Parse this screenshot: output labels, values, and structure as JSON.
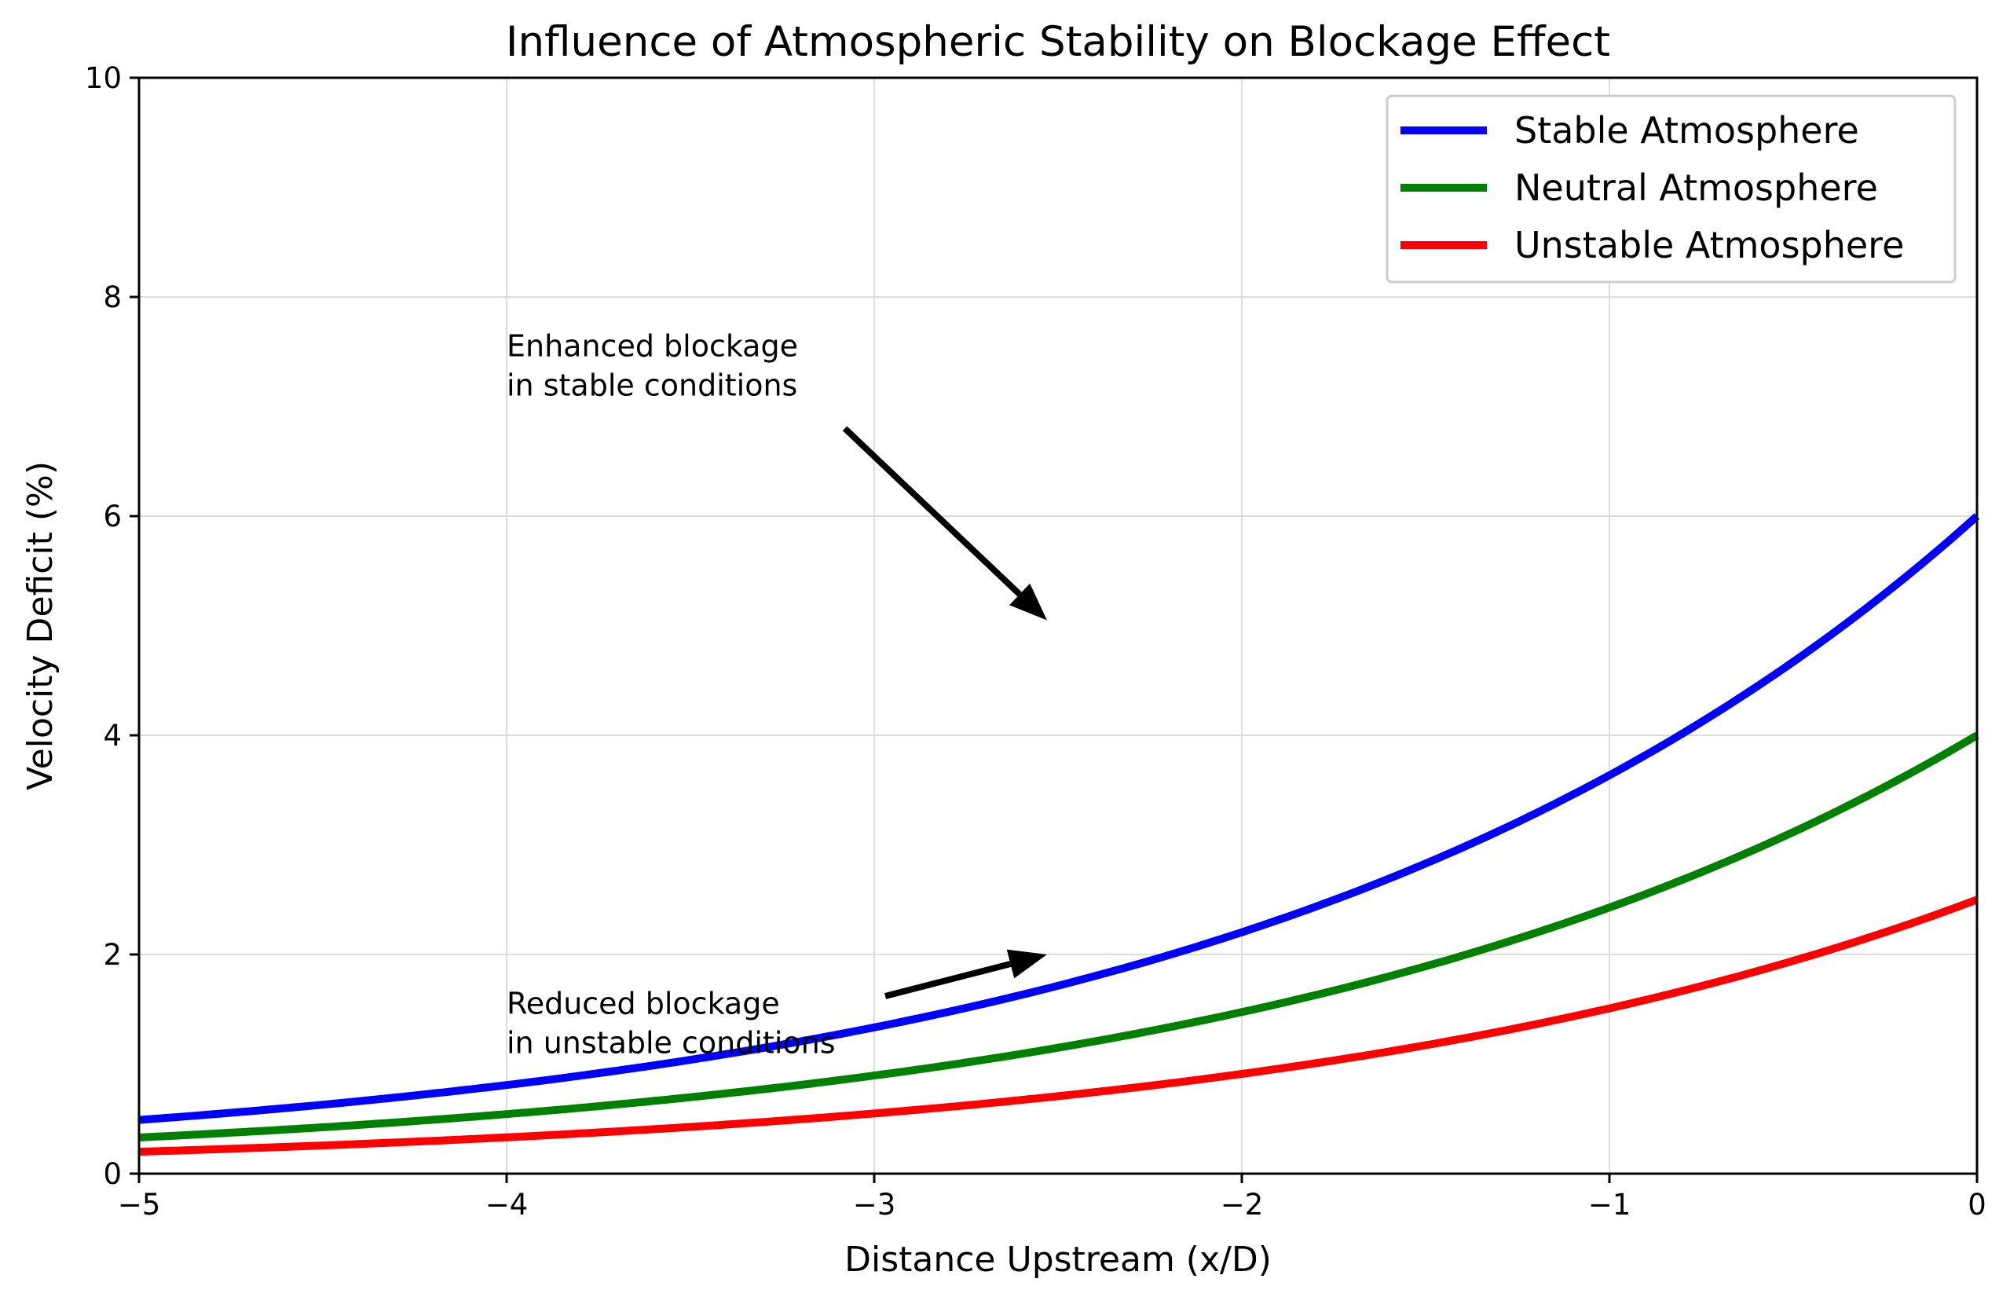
{
  "chart_data": {
    "type": "line",
    "title": "Influence of Atmospheric Stability on Blockage Effect",
    "xlabel": "Distance Upstream (x/D)",
    "ylabel": "Velocity Deficit (%)",
    "xlim": [
      -5,
      0
    ],
    "ylim": [
      0,
      10
    ],
    "x_ticks": [
      -5,
      -4,
      -3,
      -2,
      -1,
      0
    ],
    "x_tick_labels": [
      "−5",
      "−4",
      "−3",
      "−2",
      "−1",
      "0"
    ],
    "y_ticks": [
      0,
      2,
      4,
      6,
      8,
      10
    ],
    "y_tick_labels": [
      "0",
      "2",
      "4",
      "6",
      "8",
      "10"
    ],
    "grid": true,
    "legend_position": "top-right",
    "x": [
      -5.0,
      -4.5,
      -4.0,
      -3.5,
      -3.0,
      -2.5,
      -2.0,
      -1.5,
      -1.0,
      -0.5,
      0.0
    ],
    "series": [
      {
        "name": "Stable Atmosphere",
        "color": "#0000ff",
        "values": [
          0.49,
          0.63,
          0.81,
          1.05,
          1.34,
          1.73,
          2.22,
          2.86,
          3.68,
          4.73,
          6.0
        ]
      },
      {
        "name": "Neutral Atmosphere",
        "color": "#008000",
        "values": [
          0.33,
          0.42,
          0.54,
          0.7,
          0.9,
          1.15,
          1.48,
          1.9,
          2.45,
          3.15,
          4.0
        ]
      },
      {
        "name": "Unstable Atmosphere",
        "color": "#ff0000",
        "values": [
          0.2,
          0.26,
          0.34,
          0.44,
          0.56,
          0.72,
          0.93,
          1.19,
          1.53,
          1.97,
          2.5
        ]
      }
    ],
    "annotations": [
      {
        "lines": [
          "Enhanced blockage",
          "in stable conditions"
        ],
        "text_at": [
          -4.0,
          7.1
        ],
        "arrow_from": [
          -3.08,
          6.8
        ],
        "arrow_to": [
          -2.53,
          5.05
        ]
      },
      {
        "lines": [
          "Reduced blockage",
          "in unstable conditions"
        ],
        "text_at": [
          -4.0,
          1.1
        ],
        "arrow_from": [
          -2.97,
          1.62
        ],
        "arrow_to": [
          -2.53,
          2.0
        ]
      }
    ]
  }
}
